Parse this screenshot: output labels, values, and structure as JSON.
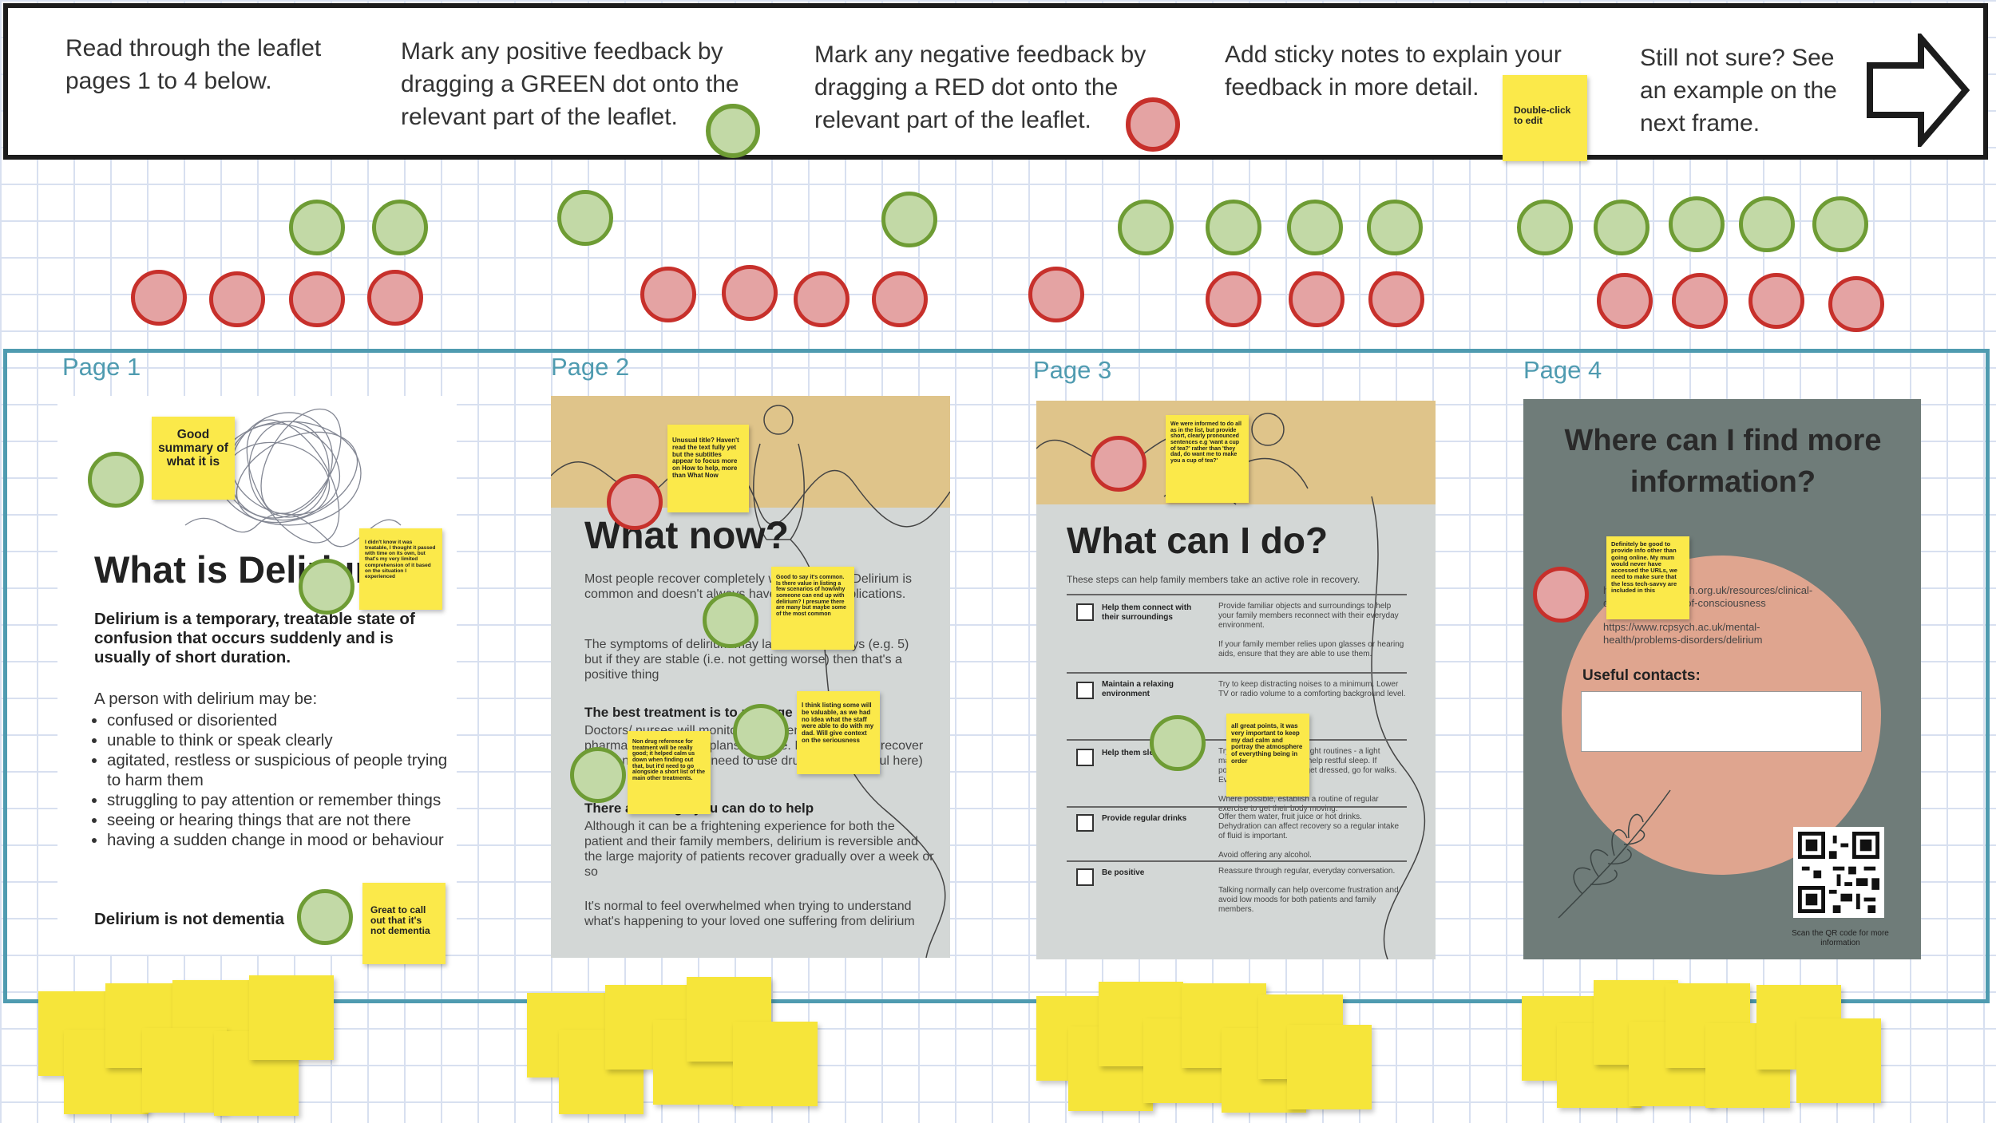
{
  "instructions": {
    "step1": "Read through the leaflet\npages  1 to 4 below.",
    "step2": "Mark any positive feedback by\ndragging a GREEN dot onto the\nrelevant part of the leaflet.",
    "step3": "Mark any negative feedback by\ndragging a RED dot onto the\nrelevant part of the leaflet.",
    "step4": "Add sticky notes to explain your\nfeedback in more detail.",
    "step4_sticky": "Double-click to edit",
    "step5": "Still not sure? See\nan example on the\nnext frame.",
    "next_icon": "arrow-right-icon"
  },
  "colors": {
    "green_fill": "#c2d9a6",
    "green_border": "#6e9c34",
    "red_fill": "#e4a3a3",
    "red_border": "#c7302b",
    "sticky": "#fbe94a",
    "frame": "#4f9bb0",
    "page4_bg": "#6f7c79",
    "page4_circle": "#dfa58f",
    "page_tan": "#dfc48a",
    "page_grey": "#d3d7d6"
  },
  "page_labels": [
    "Page 1",
    "Page 2",
    "Page 3",
    "Page 4"
  ],
  "page1": {
    "title": "What is Delirium",
    "intro": "Delirium is a temporary, treatable state of confusion that occurs suddenly and is usually of short duration.",
    "may_be": "A person with delirium may be:",
    "bullets": [
      "confused or disoriented",
      "unable to think or speak clearly",
      "agitated, restless or suspicious of people trying to harm them",
      "struggling to pay attention or remember things",
      "seeing or hearing things that are not there",
      "having a sudden change in mood or behaviour"
    ],
    "footer": "Delirium is not dementia"
  },
  "page2": {
    "title": "What now?",
    "para1": "Most people recover completely within a week. Delirium is common and doesn't always have serious complications.",
    "para2": "The symptoms of delirium may last for a few days (e.g. 5) but if they are stable (i.e. not getting worse) then that's a positive thing",
    "h2": "The best treatment is to manage symptoms",
    "para3": "Doctors/ nurses will monitor the patient and put non-pharmacological care plans in place. In some cases recover as soon as possible... need to use drugs aren't helpful here)",
    "h3": "There are things you can do to help",
    "para4": "Although it can be a frightening experience for both the patient and their family members, delirium is reversible and the large majority of patients recover gradually over a week or so",
    "para5": "It's normal to feel overwhelmed when trying to understand what's happening to your loved one suffering from delirium"
  },
  "page3": {
    "title": "What can I do?",
    "subtitle": "These steps can help family members take an active role in recovery.",
    "rows": [
      {
        "label": "Help them connect with their surroundings",
        "text": "Provide familiar objects and surroundings to help your family members reconnect with their everyday environment.\n\nIf your family member relies upon glasses or hearing aids, ensure that they are able to use them."
      },
      {
        "label": "Maintain a relaxing environment",
        "text": "Try to keep distracting noises to a minimum. Lower TV or radio volume to a comforting background level."
      },
      {
        "label": "Help them sleep",
        "text": "Try to maintain day and night routines - a light massage at bedtime can help restful sleep. If possible, take a shower, get dressed, go for walks. Everyday activities ...\n\nWhere possible, establish a routine of regular exercise to get their body moving."
      },
      {
        "label": "Provide regular drinks",
        "text": "Offer them water, fruit juice or hot drinks. Dehydration can affect recovery so a regular intake of fluid is important.\n\nAvoid offering any alcohol."
      },
      {
        "label": "Be positive",
        "text": "Reassure through regular, everyday conversation.\n\nTalking normally can help overcome frustration and avoid low moods for both patients and family members."
      }
    ]
  },
  "page4": {
    "title": "Where can I find more information?",
    "link1": "https://www.rcpsych.org.uk/resources/clinical-delirium-and-loss-of-consciousness",
    "link2": "https://www.rcpsych.ac.uk/mental-health/problems-disorders/delirium",
    "contacts": "Useful contacts:",
    "qr_caption": "Scan the QR code for more information"
  },
  "notes": {
    "p1_summary": "Good summary of what it is",
    "p1_treatable": "I didn't know it was treatable, I thought it passed with time on its own, but that's my very limited comprehension of it based on the situation I experienced",
    "p1_dementia": "Great to call out that it's not dementia",
    "p2_title": "Unusual title? Haven't read the text fully yet but the subtitles appear to focus more on How to help, more than What Now",
    "p2_common": "Good to say it's common. Is there value in listing a few scenarios of how/why someone can end up with delirium? I presume there are many but maybe some of the most common",
    "p2_listing": "I think listing some will be valuable, as we had no idea what the staff were able to do with my dad. Will give context on the seriousness",
    "p2_nondrug": "Non drug reference for treatment will be really good; it helped calm us down when finding out that, but it'd need to go alongside a short list of the main other treatments.",
    "p3_informed": "We were informed to do all as in the list, but provide short, clearly pronounced sentences e.g 'want a cup of tea?' rather than 'they dad, do want me to make you a cup of tea?'",
    "p3_great": "all great points, it was very important to keep my dad calm and portray the atmosphere of everything being in order",
    "p4_links": "Definitely be good to provide info other than going online. My mum would never have accessed the URLs, we need to make sure that the less tech-savvy are included in this"
  }
}
